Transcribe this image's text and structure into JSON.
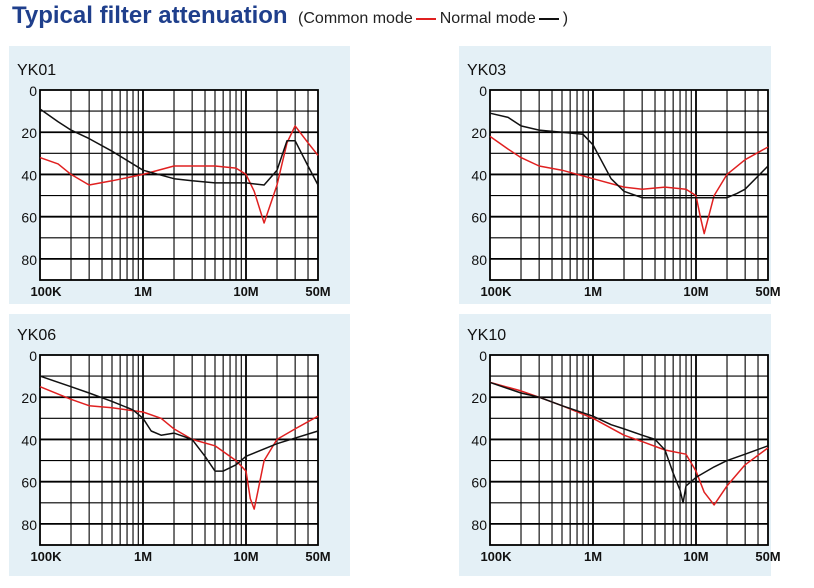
{
  "header": {
    "title": "Typical filter attenuation",
    "paren_open": "(",
    "paren_close": ")",
    "legend": [
      {
        "name": "Common mode",
        "color": "#e02020"
      },
      {
        "name": "Normal mode",
        "color": "#111111"
      }
    ]
  },
  "chart_data": [
    {
      "type": "line",
      "title": "YK01",
      "x_scale": "log",
      "xlim": [
        100000,
        50000000
      ],
      "ylim": [
        0,
        90
      ],
      "y_inverted": true,
      "x_ticks": [
        "100K",
        "1M",
        "10M",
        "50M"
      ],
      "y_ticks": [
        "0",
        "20",
        "40",
        "60",
        "80"
      ],
      "series": [
        {
          "name": "Common mode",
          "color": "#e02020",
          "x": [
            100000,
            150000,
            200000,
            300000,
            500000,
            1000000,
            2000000,
            5000000,
            8000000,
            10000000,
            12000000,
            15000000,
            20000000,
            25000000,
            30000000,
            40000000,
            50000000
          ],
          "y": [
            32,
            35,
            40,
            45,
            43,
            40,
            36,
            36,
            37,
            40,
            48,
            63,
            45,
            25,
            17,
            25,
            31
          ]
        },
        {
          "name": "Normal mode",
          "color": "#111111",
          "x": [
            100000,
            150000,
            200000,
            300000,
            500000,
            1000000,
            2000000,
            3000000,
            5000000,
            10000000,
            15000000,
            20000000,
            25000000,
            30000000,
            40000000,
            50000000
          ],
          "y": [
            9,
            15,
            19,
            23,
            29,
            38,
            42,
            43,
            44,
            44,
            45,
            38,
            24,
            24,
            36,
            45
          ]
        }
      ]
    },
    {
      "type": "line",
      "title": "YK03",
      "x_scale": "log",
      "xlim": [
        100000,
        50000000
      ],
      "ylim": [
        0,
        90
      ],
      "y_inverted": true,
      "x_ticks": [
        "100K",
        "1M",
        "10M",
        "50M"
      ],
      "y_ticks": [
        "0",
        "20",
        "40",
        "60",
        "80"
      ],
      "series": [
        {
          "name": "Common mode",
          "color": "#e02020",
          "x": [
            100000,
            150000,
            200000,
            300000,
            500000,
            1000000,
            2000000,
            3000000,
            5000000,
            8000000,
            10000000,
            11000000,
            12000000,
            15000000,
            20000000,
            30000000,
            50000000
          ],
          "y": [
            22,
            28,
            32,
            36,
            38,
            42,
            46,
            47,
            46,
            47,
            50,
            60,
            68,
            50,
            40,
            33,
            27
          ]
        },
        {
          "name": "Normal mode",
          "color": "#111111",
          "x": [
            100000,
            150000,
            200000,
            300000,
            500000,
            800000,
            1000000,
            1500000,
            2000000,
            3000000,
            5000000,
            10000000,
            20000000,
            25000000,
            30000000,
            50000000
          ],
          "y": [
            11,
            13,
            17,
            19,
            20,
            21,
            26,
            42,
            48,
            51,
            51,
            51,
            51,
            49,
            47,
            36
          ]
        }
      ]
    },
    {
      "type": "line",
      "title": "YK06",
      "x_scale": "log",
      "xlim": [
        100000,
        50000000
      ],
      "ylim": [
        0,
        90
      ],
      "y_inverted": true,
      "x_ticks": [
        "100K",
        "1M",
        "10M",
        "50M"
      ],
      "y_ticks": [
        "0",
        "20",
        "40",
        "60",
        "80"
      ],
      "series": [
        {
          "name": "Common mode",
          "color": "#e02020",
          "x": [
            100000,
            200000,
            300000,
            500000,
            1000000,
            1500000,
            2000000,
            3000000,
            5000000,
            8000000,
            10000000,
            11000000,
            12000000,
            13000000,
            15000000,
            20000000,
            30000000,
            50000000
          ],
          "y": [
            15,
            21,
            24,
            25,
            27,
            30,
            35,
            40,
            43,
            50,
            55,
            68,
            73,
            65,
            50,
            40,
            35,
            29
          ]
        },
        {
          "name": "Normal mode",
          "color": "#111111",
          "x": [
            100000,
            200000,
            300000,
            500000,
            800000,
            1000000,
            1200000,
            1500000,
            2000000,
            3000000,
            4000000,
            5000000,
            6000000,
            8000000,
            10000000,
            20000000,
            50000000
          ],
          "y": [
            10,
            15,
            18,
            22,
            26,
            30,
            36,
            38,
            37,
            40,
            48,
            55,
            55,
            52,
            48,
            42,
            36
          ]
        }
      ]
    },
    {
      "type": "line",
      "title": "YK10",
      "x_scale": "log",
      "xlim": [
        100000,
        50000000
      ],
      "ylim": [
        0,
        90
      ],
      "y_inverted": true,
      "x_ticks": [
        "100K",
        "1M",
        "10M",
        "50M"
      ],
      "y_ticks": [
        "0",
        "20",
        "40",
        "60",
        "80"
      ],
      "series": [
        {
          "name": "Common mode",
          "color": "#e02020",
          "x": [
            100000,
            200000,
            300000,
            500000,
            1000000,
            2000000,
            3000000,
            5000000,
            8000000,
            10000000,
            12000000,
            15000000,
            20000000,
            30000000,
            50000000
          ],
          "y": [
            13,
            17,
            20,
            24,
            30,
            38,
            41,
            45,
            47,
            55,
            65,
            71,
            62,
            52,
            44
          ]
        },
        {
          "name": "Normal mode",
          "color": "#111111",
          "x": [
            100000,
            200000,
            300000,
            500000,
            1000000,
            1500000,
            2000000,
            3000000,
            4000000,
            5000000,
            6000000,
            7000000,
            7500000,
            8000000,
            10000000,
            15000000,
            20000000,
            30000000,
            50000000
          ],
          "y": [
            13,
            18,
            20,
            24,
            29,
            33,
            35,
            38,
            40,
            45,
            56,
            64,
            70,
            62,
            58,
            53,
            50,
            47,
            43
          ]
        }
      ]
    }
  ]
}
